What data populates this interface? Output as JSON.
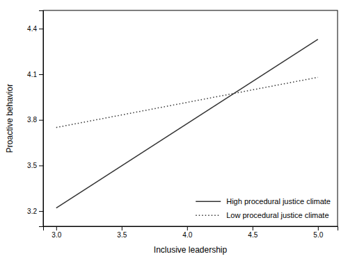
{
  "chart_data": {
    "type": "line",
    "x_label": "Inclusive leadership",
    "y_label": "Proactive behavior",
    "x": [
      3.0,
      5.0
    ],
    "series": [
      {
        "name": "High procedural justice climate",
        "color": "#333333",
        "line_style": "solid",
        "values": [
          3.22,
          4.33
        ]
      },
      {
        "name": "Low procedural justice climate",
        "color": "#333333",
        "line_style": "dotted",
        "values": [
          3.75,
          4.08
        ]
      }
    ],
    "xlim": [
      2.9,
      5.15
    ],
    "ylim": [
      3.1,
      4.52
    ],
    "xticks": [
      {
        "value": 3.0,
        "label": "3.0"
      },
      3.5,
      {
        "value": 4.0,
        "label": "4.0"
      },
      4.5,
      {
        "value": 5.0,
        "label": "5.0"
      }
    ],
    "yticks": [
      3.2,
      3.5,
      3.8,
      4.1,
      4.4
    ],
    "grid": false,
    "legend": "lower right"
  }
}
